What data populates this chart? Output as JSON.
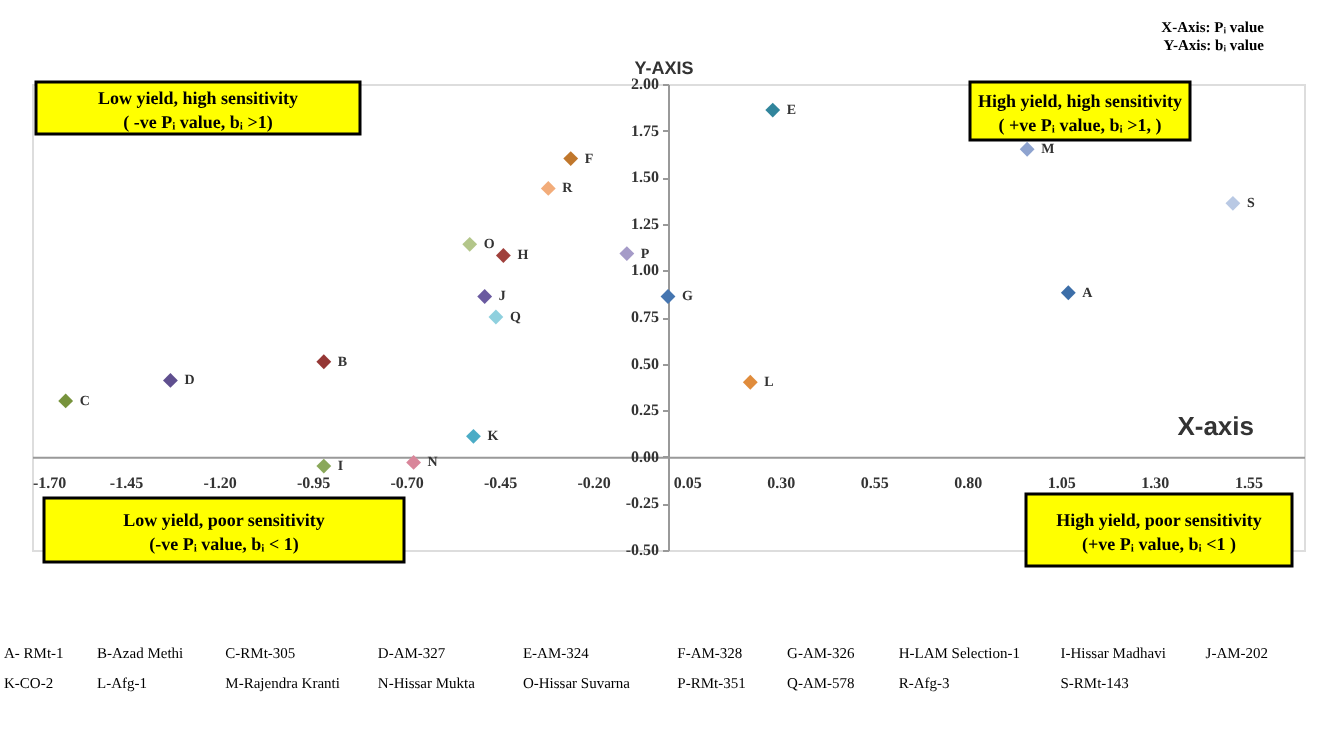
{
  "chart_data": {
    "type": "scatter",
    "xlabel": "X-axis",
    "ylabel": "Y-AXIS",
    "xlim": [
      -1.7,
      1.7
    ],
    "ylim": [
      -0.5,
      2.0
    ],
    "xticks": [
      {
        "value": -1.7,
        "label": "-1.70"
      },
      {
        "value": -1.45,
        "label": "-1.45"
      },
      {
        "value": -1.2,
        "label": "-1.20"
      },
      {
        "value": -0.95,
        "label": "-0.95"
      },
      {
        "value": -0.7,
        "label": "-0.70"
      },
      {
        "value": -0.45,
        "label": "-0.45"
      },
      {
        "value": -0.2,
        "label": "-0.20"
      },
      {
        "value": 0.05,
        "label": "0.05"
      },
      {
        "value": 0.3,
        "label": "0.30"
      },
      {
        "value": 0.55,
        "label": "0.55"
      },
      {
        "value": 0.8,
        "label": "0.80"
      },
      {
        "value": 1.05,
        "label": "1.05"
      },
      {
        "value": 1.3,
        "label": "1.30"
      },
      {
        "value": 1.55,
        "label": "1.55"
      }
    ],
    "yticks": [
      {
        "value": -0.5,
        "label": "-0.50"
      },
      {
        "value": -0.25,
        "label": "-0.25"
      },
      {
        "value": 0,
        "label": "0.00"
      },
      {
        "value": 0.25,
        "label": "0.25"
      },
      {
        "value": 0.5,
        "label": "0.50"
      },
      {
        "value": 0.75,
        "label": "0.75"
      },
      {
        "value": 1.0,
        "label": "1.00"
      },
      {
        "value": 1.25,
        "label": "1.25"
      },
      {
        "value": 1.5,
        "label": "1.50"
      },
      {
        "value": 1.75,
        "label": "1.75"
      },
      {
        "value": 2.0,
        "label": "2.00"
      }
    ],
    "grid": false,
    "legend": false,
    "marker": "diamond",
    "series": [
      {
        "x": [
          1.07,
          -0.92,
          -1.61,
          -1.33,
          0.28,
          -0.26,
          0.0,
          -0.44,
          -0.92,
          -0.49,
          -0.52,
          0.22,
          0.96,
          -0.68,
          -0.53,
          -0.11,
          -0.46,
          -0.32,
          1.51
        ],
        "values": [
          0.88,
          0.51,
          0.3,
          0.41,
          1.86,
          1.6,
          0.86,
          1.08,
          -0.05,
          0.86,
          0.11,
          0.4,
          1.65,
          -0.03,
          1.14,
          1.09,
          0.75,
          1.44,
          1.36
        ],
        "colors": [
          "#3c6ea8",
          "#953735",
          "#77933c",
          "#5f4f8f",
          "#31859c",
          "#c0772c",
          "#4575b0",
          "#a0403c",
          "#8aa85a",
          "#6a5aa0",
          "#4bacc6",
          "#e08c3c",
          "#8ea3cf",
          "#d9869a",
          "#b3c68a",
          "#a59bc8",
          "#8fd0de",
          "#f2ac7a",
          "#b9c9e4"
        ]
      }
    ],
    "annotations": [
      "Low yield, high sensitivity\n( -ve Pᵢ value, bᵢ >1)",
      "High yield, high sensitivity\n( +ve Pᵢ value, bᵢ >1, )",
      "Low yield, poor sensitivity\n(-ve Pᵢ value,  bᵢ < 1)",
      "High yield, poor sensitivity\n(+ve Pᵢ value, bᵢ <1 )",
      "X-Axis: Pᵢ value",
      "Y-Axis: bᵢ value",
      "A- RMt-1",
      "B-Azad Methi",
      "C-RMt-305",
      "D-AM-327",
      "E-AM-324",
      "F-AM-328",
      "G-AM-326",
      "H-LAM Selection-1",
      "I-Hissar Madhavi",
      "J-AM-202",
      "K-CO-2",
      "L-Afg-1",
      "M-Rajendra Kranti",
      "N-Hissar Mukta",
      "O-Hissar Suvarna",
      "P-RMt-351",
      "Q-AM-578",
      "R-Afg-3",
      "S-RMt-143",
      {
        "text": "A",
        "x": 1.07,
        "y": 0.88
      },
      {
        "text": "B",
        "x": -0.92,
        "y": 0.51
      },
      {
        "text": "C",
        "x": -1.61,
        "y": 0.3
      },
      {
        "text": "D",
        "x": -1.33,
        "y": 0.41
      },
      {
        "text": "E",
        "x": 0.28,
        "y": 1.86
      },
      {
        "text": "F",
        "x": -0.26,
        "y": 1.6
      },
      {
        "text": "G",
        "x": 0.0,
        "y": 0.86
      },
      {
        "text": "H",
        "x": -0.44,
        "y": 1.08
      },
      {
        "text": "I",
        "x": -0.92,
        "y": -0.05
      },
      {
        "text": "J",
        "x": -0.49,
        "y": 0.86
      },
      {
        "text": "K",
        "x": -0.52,
        "y": 0.11
      },
      {
        "text": "L",
        "x": 0.22,
        "y": 0.4
      },
      {
        "text": "M",
        "x": 0.96,
        "y": 1.65
      },
      {
        "text": "N",
        "x": -0.68,
        "y": -0.03
      },
      {
        "text": "O",
        "x": -0.53,
        "y": 1.14
      },
      {
        "text": "P",
        "x": -0.11,
        "y": 1.09
      },
      {
        "text": "Q",
        "x": -0.46,
        "y": 0.75
      },
      {
        "text": "R",
        "x": -0.32,
        "y": 1.44
      },
      {
        "text": "S",
        "x": 1.51,
        "y": 1.36
      }
    ]
  }
}
